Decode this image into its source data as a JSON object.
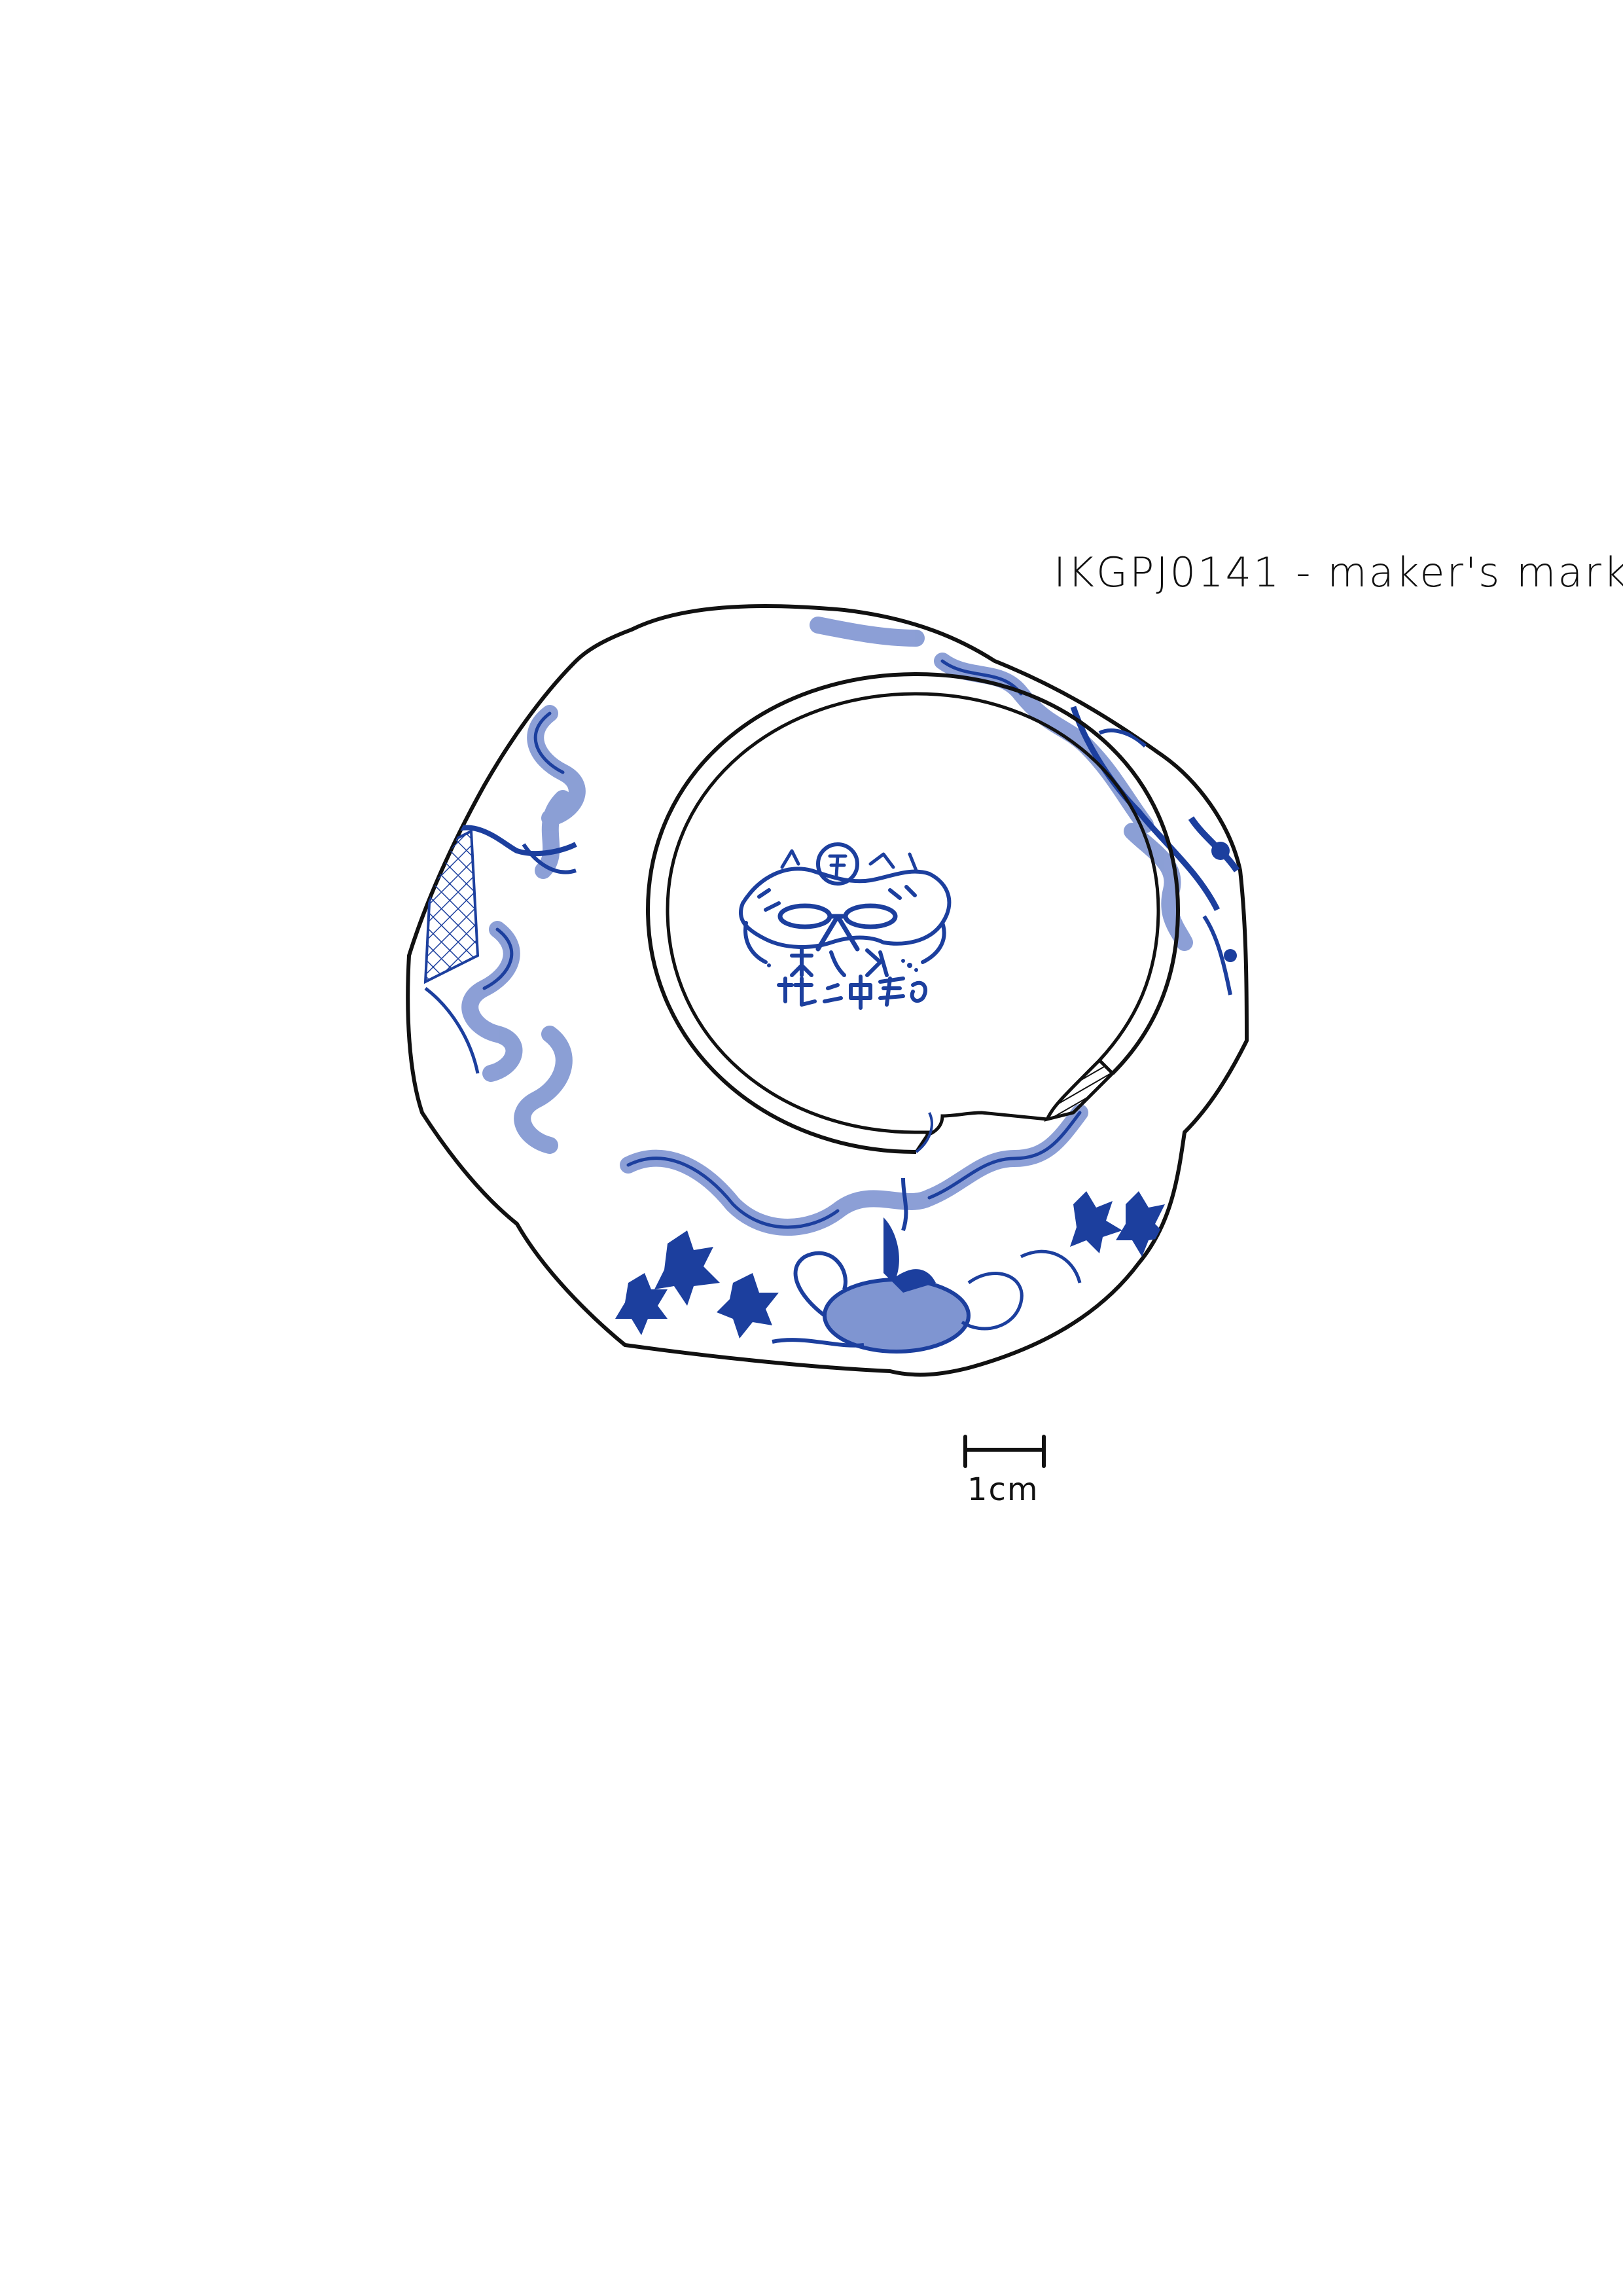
{
  "caption": "IKGPJ0141 - maker's mark",
  "scale": {
    "label": "1cm"
  },
  "colors": {
    "ink": "#111111",
    "cobalt": "#1c3f9e",
    "cobalt_wash": "#7f95d1",
    "background": "#ffffff"
  }
}
